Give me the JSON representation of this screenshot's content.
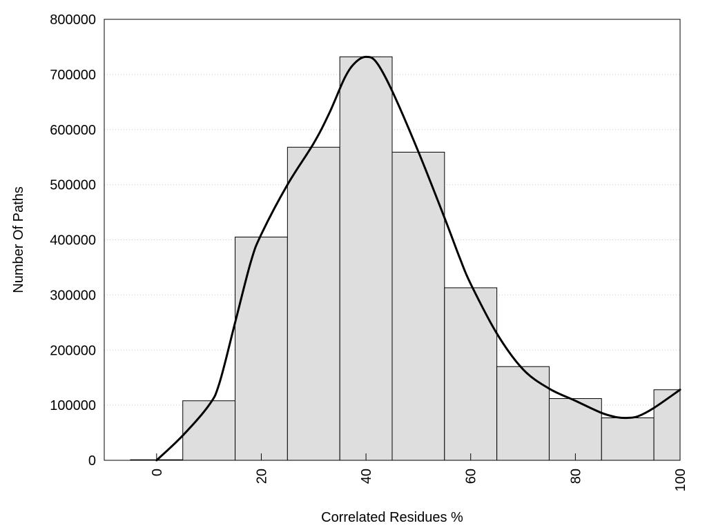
{
  "chart_data": {
    "type": "bar",
    "title": "",
    "xlabel": "Correlated Residues %",
    "ylabel": "Number Of Paths",
    "xlim": [
      -10,
      100
    ],
    "ylim": [
      0,
      800000
    ],
    "bin_width": 10,
    "x_ticks": [
      "0",
      "20",
      "40",
      "60",
      "80",
      "100"
    ],
    "x_tick_values": [
      0,
      20,
      40,
      60,
      80,
      100
    ],
    "y_ticks": [
      "0",
      "100000",
      "200000",
      "300000",
      "400000",
      "500000",
      "600000",
      "700000",
      "800000"
    ],
    "y_tick_values": [
      0,
      100000,
      200000,
      300000,
      400000,
      500000,
      600000,
      700000,
      800000
    ],
    "grid": "horizontal-dotted",
    "legend": "none",
    "bar_fill": "#dedede",
    "bar_stroke": "#000000",
    "bin_centers": [
      0,
      10,
      20,
      30,
      40,
      50,
      60,
      70,
      80,
      90,
      100
    ],
    "values": [
      1000,
      108000,
      405000,
      568000,
      732000,
      559000,
      313000,
      170000,
      112000,
      77000,
      128000
    ],
    "curve": {
      "x": [
        0,
        5,
        10,
        12,
        15,
        18,
        20,
        25,
        30,
        33,
        36,
        38,
        40,
        42,
        45,
        50,
        55,
        58,
        60,
        65,
        70,
        75,
        80,
        85,
        88,
        90,
        92,
        95,
        100
      ],
      "y": [
        0,
        45000,
        100000,
        140000,
        250000,
        360000,
        410000,
        500000,
        575000,
        630000,
        695000,
        722000,
        732000,
        722000,
        670000,
        560000,
        440000,
        365000,
        320000,
        230000,
        165000,
        130000,
        108000,
        86000,
        78000,
        77000,
        80000,
        95000,
        128000
      ]
    }
  }
}
